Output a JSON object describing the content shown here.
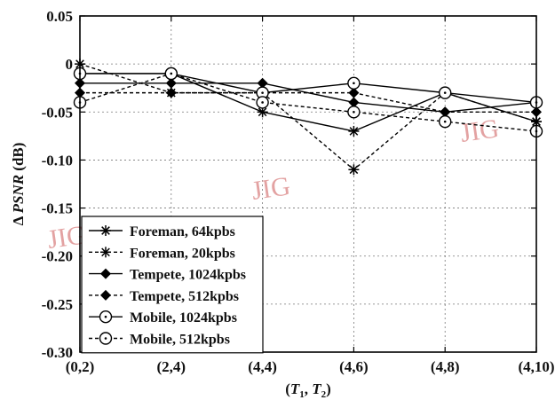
{
  "chart_data": {
    "type": "line",
    "xlabel": "(T₁, T₂)",
    "ylabel": "Δ PSNR (dB)",
    "categories": [
      "(0,2)",
      "(2,4)",
      "(4,4)",
      "(4,6)",
      "(4,8)",
      "(4,10)"
    ],
    "yticks": [
      "0.05",
      "0",
      "-0.05",
      "-0.10",
      "-0.15",
      "-0.20",
      "-0.25",
      "-0.30"
    ],
    "ylim": [
      -0.3,
      0.05
    ],
    "grid": true,
    "legend_position": "bottom-left",
    "series": [
      {
        "name": "Foreman, 64kpbs",
        "values": [
          -0.01,
          -0.01,
          -0.05,
          -0.07,
          -0.03,
          -0.06
        ],
        "line": "solid",
        "marker": "star"
      },
      {
        "name": "Foreman, 20kpbs",
        "values": [
          0.0,
          -0.03,
          -0.03,
          -0.11,
          -0.03,
          -0.06
        ],
        "line": "dashed",
        "marker": "star"
      },
      {
        "name": "Tempete, 1024kpbs",
        "values": [
          -0.02,
          -0.02,
          -0.02,
          -0.04,
          -0.05,
          -0.04
        ],
        "line": "solid",
        "marker": "diamond"
      },
      {
        "name": "Tempete, 512kpbs",
        "values": [
          -0.03,
          -0.03,
          -0.03,
          -0.03,
          -0.05,
          -0.05
        ],
        "line": "dashed",
        "marker": "diamond"
      },
      {
        "name": "Mobile, 1024kpbs",
        "values": [
          -0.01,
          -0.01,
          -0.03,
          -0.02,
          -0.03,
          -0.04
        ],
        "line": "solid",
        "marker": "circle"
      },
      {
        "name": "Mobile, 512kpbs",
        "values": [
          -0.04,
          -0.01,
          -0.04,
          -0.05,
          -0.06,
          -0.07
        ],
        "line": "dashed",
        "marker": "circle"
      }
    ],
    "watermarks": [
      "JIG",
      "JIG",
      "JIG"
    ]
  }
}
